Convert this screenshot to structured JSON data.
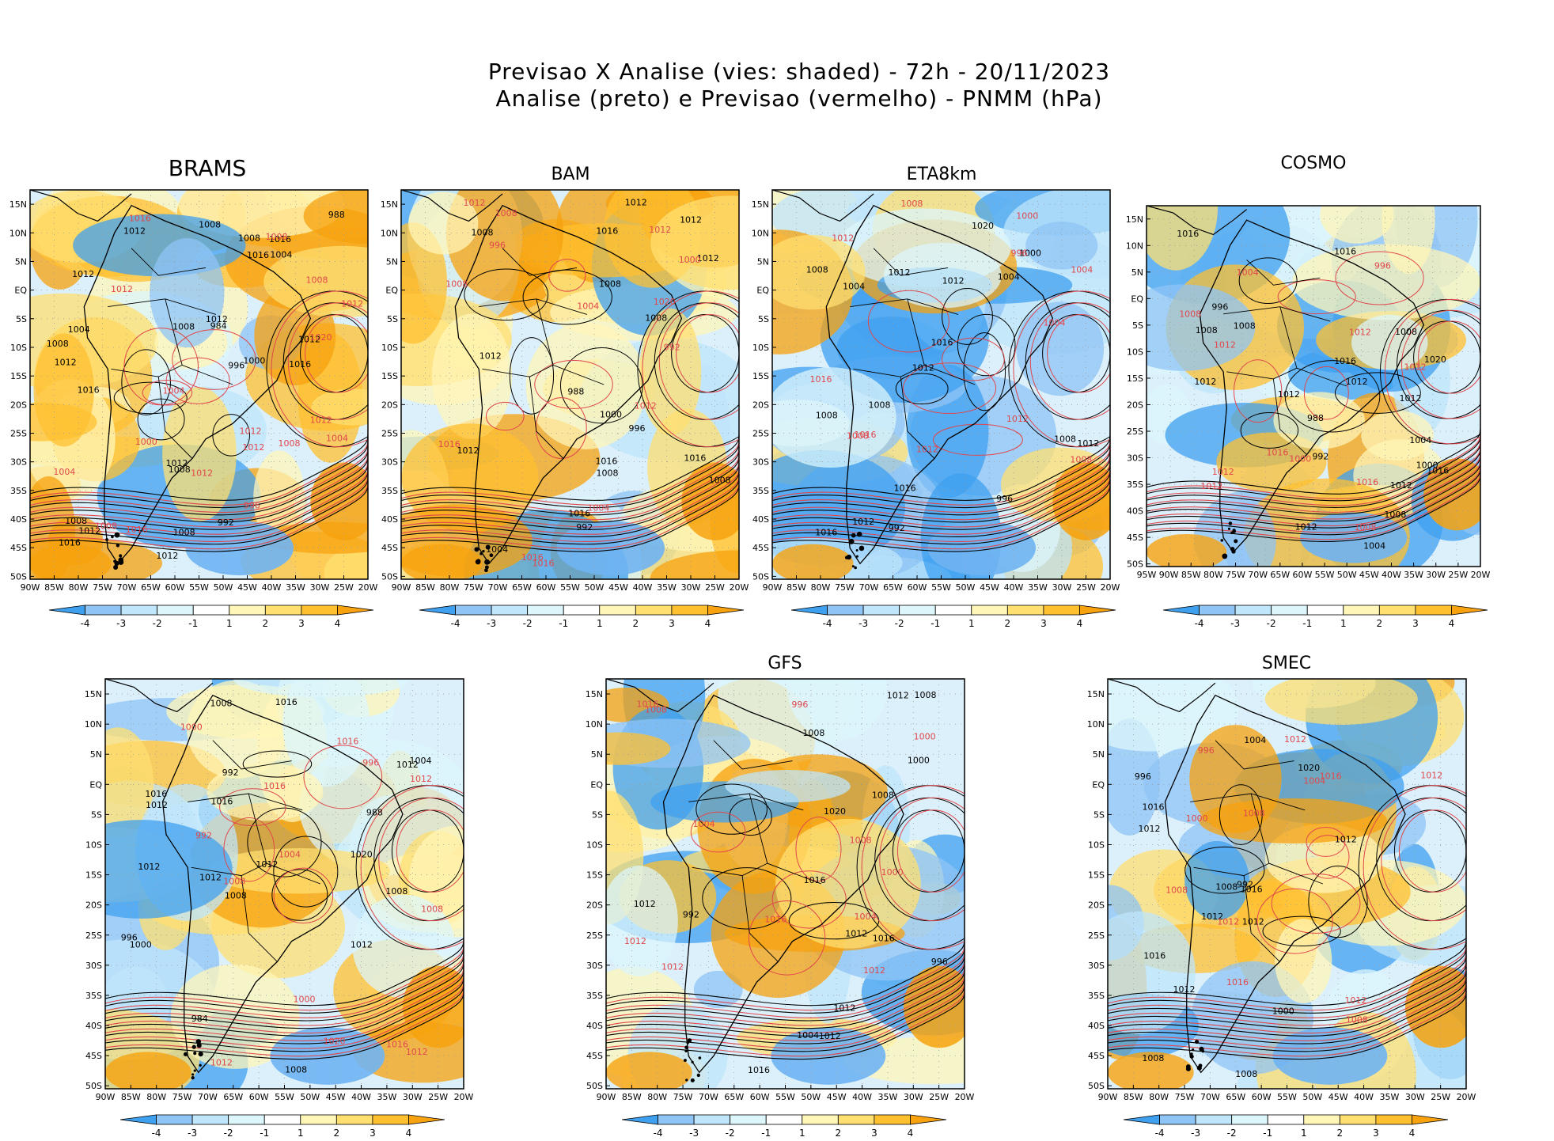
{
  "title": {
    "line1": "Previsao X Analise (vies: shaded) - 72h - 20/11/2023",
    "line2": "Analise (preto) e Previsao (vermelho) - PNMM (hPa)"
  },
  "axes": {
    "lon_labels": [
      "90W",
      "85W",
      "80W",
      "75W",
      "70W",
      "65W",
      "60W",
      "55W",
      "50W",
      "45W",
      "40W",
      "35W",
      "30W",
      "25W",
      "20W"
    ],
    "lon_labels_cosmo": [
      "95W",
      "90W",
      "85W",
      "80W",
      "75W",
      "70W",
      "65W",
      "60W",
      "55W",
      "50W",
      "45W",
      "40W",
      "35W",
      "30W",
      "25W",
      "20W"
    ],
    "lat_labels": [
      "15N",
      "10N",
      "5N",
      "EQ",
      "5S",
      "10S",
      "15S",
      "20S",
      "25S",
      "30S",
      "35S",
      "40S",
      "45S",
      "50S"
    ]
  },
  "colorbar": {
    "ticks": [
      "-4",
      "-3",
      "-2",
      "-1",
      "1",
      "2",
      "3",
      "4"
    ],
    "colors": [
      "#3fa0f0",
      "#8fc4f6",
      "#bfe6fb",
      "#dcf6fb",
      "#ffffff",
      "#fff6b8",
      "#ffdf70",
      "#ffc030",
      "#f7a20e"
    ]
  },
  "panels": [
    {
      "name": "BRAMS",
      "title": "BRAMS",
      "black_labels": [
        "1012",
        "1008",
        "1012",
        "1008",
        "1012",
        "1016",
        "1004",
        "1008",
        "1008",
        "1012",
        "1016",
        "1012",
        "1016",
        "1008",
        "1012",
        "1016",
        "1012",
        "1000",
        "1004",
        "1008",
        "996",
        "992",
        "988",
        "984",
        "1008",
        "1012",
        "1016"
      ],
      "red_labels": [
        "1012",
        "1012",
        "1008",
        "1004",
        "1008",
        "1012",
        "1016",
        "1012",
        "1020",
        "1016",
        "1012",
        "1008",
        "1004",
        "1000",
        "996",
        "1004",
        "1012",
        "1008"
      ]
    },
    {
      "name": "BAM",
      "title": "BAM",
      "black_labels": [
        "1016",
        "1012",
        "1008",
        "1012",
        "1008",
        "1016",
        "1012",
        "1008",
        "1012",
        "1016",
        "1008",
        "1004",
        "1000",
        "996",
        "992",
        "988",
        "1016",
        "1012",
        "1008"
      ],
      "red_labels": [
        "1016",
        "1012",
        "1008",
        "1004",
        "1016",
        "1020",
        "1012",
        "1008",
        "1004",
        "1000",
        "996",
        "992",
        "1016",
        "1012"
      ]
    },
    {
      "name": "ETA8km",
      "title": "ETA8km",
      "black_labels": [
        "1016",
        "1012",
        "1008",
        "1012",
        "1008",
        "1016",
        "1012",
        "1008",
        "1012",
        "1016",
        "1020",
        "1008",
        "1004",
        "1000",
        "996",
        "992",
        "1004",
        "1012"
      ],
      "red_labels": [
        "1012",
        "1012",
        "1008",
        "1004",
        "1008",
        "1016",
        "1016",
        "1012",
        "1008",
        "1004",
        "1000",
        "996"
      ]
    },
    {
      "name": "COSMO",
      "title": "COSMO",
      "black_labels": [
        "1012",
        "1012",
        "1016",
        "1008",
        "1012",
        "1016",
        "1016",
        "1012",
        "1008",
        "1012",
        "1016",
        "1020",
        "1008",
        "1004",
        "1000",
        "996",
        "992",
        "988",
        "1004",
        "1012",
        "1008"
      ],
      "red_labels": [
        "1012",
        "1012",
        "1008",
        "1016",
        "1012",
        "1016",
        "1012",
        "1008",
        "1004",
        "1000",
        "996",
        "1012"
      ]
    },
    {
      "name": "SEVENTH",
      "title": "",
      "black_labels": [
        "1012",
        "1008",
        "1016",
        "1012",
        "1008",
        "1012",
        "1016",
        "1020",
        "1008",
        "1012",
        "1016",
        "1012",
        "1008",
        "1004",
        "1000",
        "996",
        "992",
        "988",
        "984",
        "1012"
      ],
      "red_labels": [
        "1012",
        "1008",
        "1016",
        "1012",
        "1020",
        "1016",
        "1008",
        "1004",
        "1000",
        "996",
        "992",
        "1012",
        "1016",
        "1000"
      ]
    },
    {
      "name": "GFS",
      "title": "GFS",
      "black_labels": [
        "1016",
        "1012",
        "1008",
        "1012",
        "1008",
        "1016",
        "1012",
        "1020",
        "1016",
        "1012",
        "1008",
        "1004",
        "1000",
        "996",
        "992",
        "1012"
      ],
      "red_labels": [
        "1012",
        "1016",
        "1012",
        "1008",
        "1016",
        "1012",
        "1008",
        "1004",
        "1000",
        "996",
        "1004",
        "1000"
      ]
    },
    {
      "name": "SMEC",
      "title": "SMEC",
      "black_labels": [
        "1016",
        "1012",
        "1008",
        "1012",
        "1008",
        "1016",
        "1012",
        "1020",
        "1016",
        "1012",
        "1008",
        "1004",
        "1000",
        "996",
        "992",
        "1012"
      ],
      "red_labels": [
        "1012",
        "1016",
        "1012",
        "1008",
        "1016",
        "1012",
        "1008",
        "1004",
        "1000",
        "996",
        "1012",
        "1008"
      ]
    }
  ]
}
